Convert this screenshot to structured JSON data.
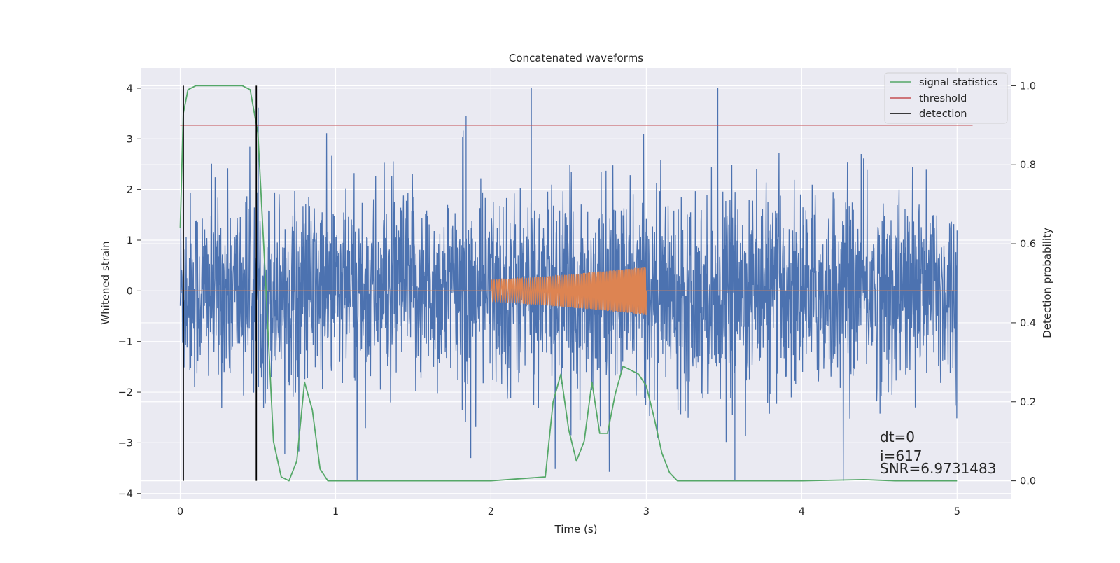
{
  "chart_data": {
    "type": "line",
    "title": "Concatenated waveforms",
    "xlabel": "Time (s)",
    "ylabel": "Whitened strain",
    "y2label": "Detection probability",
    "xlim": [
      -0.25,
      5.35
    ],
    "ylim": [
      -4.1,
      4.4
    ],
    "y2lim": [
      -0.045,
      1.045
    ],
    "xticks": [
      0,
      1,
      2,
      3,
      4,
      5
    ],
    "yticks": [
      -4,
      -3,
      -2,
      -1,
      0,
      1,
      2,
      3,
      4
    ],
    "y2ticks": [
      0.0,
      0.2,
      0.4,
      0.6,
      0.8,
      1.0
    ],
    "xtick_labels": [
      "0",
      "1",
      "2",
      "3",
      "4",
      "5"
    ],
    "ytick_labels": [
      "−4",
      "−3",
      "−2",
      "−1",
      "0",
      "1",
      "2",
      "3",
      "4"
    ],
    "y2tick_labels": [
      "0.0",
      "0.2",
      "0.4",
      "0.6",
      "0.8",
      "1.0"
    ],
    "grid": true,
    "legend_position": "top-right",
    "legend": [
      {
        "label": "signal statistics",
        "color": "#55a868"
      },
      {
        "label": "threshold",
        "color": "#c44e52"
      },
      {
        "label": "detection",
        "color": "#000000"
      }
    ],
    "series": [
      {
        "axis": "left",
        "color": "#4c72b0",
        "x_range": [
          0,
          5
        ],
        "typical_amplitude": [
          -1.0,
          0.9
        ],
        "max": 4.0,
        "min": -3.75
      },
      {
        "axis": "left",
        "color": "#dd8452",
        "x_range": [
          0,
          5
        ],
        "chirp_start": 2.0,
        "chirp_end": 3.0,
        "start_amplitude": 0.22,
        "end_amplitude": 0.48
      },
      {
        "name": "signal statistics",
        "axis": "right",
        "color": "#55a868",
        "x": [
          0.0,
          0.02,
          0.05,
          0.1,
          0.2,
          0.3,
          0.4,
          0.45,
          0.5,
          0.55,
          0.6,
          0.65,
          0.7,
          0.75,
          0.8,
          0.85,
          0.9,
          0.95,
          1.0,
          1.5,
          2.0,
          2.35,
          2.4,
          2.45,
          2.5,
          2.55,
          2.6,
          2.65,
          2.7,
          2.75,
          2.8,
          2.85,
          2.9,
          2.95,
          3.0,
          3.05,
          3.1,
          3.15,
          3.2,
          3.3,
          4.0,
          4.4,
          4.6,
          5.0
        ],
        "y": [
          0.64,
          0.93,
          0.99,
          1.0,
          1.0,
          1.0,
          1.0,
          0.99,
          0.88,
          0.5,
          0.1,
          0.01,
          0.0,
          0.05,
          0.25,
          0.18,
          0.03,
          0.0,
          0.0,
          0.0,
          0.0,
          0.01,
          0.2,
          0.27,
          0.13,
          0.05,
          0.1,
          0.25,
          0.12,
          0.12,
          0.22,
          0.29,
          0.28,
          0.27,
          0.24,
          0.16,
          0.07,
          0.02,
          0.0,
          0.0,
          0.0,
          0.003,
          0.0,
          0.0
        ]
      },
      {
        "name": "threshold",
        "axis": "right",
        "color": "#c44e52",
        "x": [
          0.0,
          5.1
        ],
        "y": [
          0.9,
          0.9
        ]
      },
      {
        "name": "detection",
        "axis": "right",
        "color": "#000000",
        "vlines": [
          0.02,
          0.49
        ],
        "y": [
          0.0,
          1.0
        ]
      }
    ],
    "annotations": [
      "dt=0",
      "i=617",
      "SNR=6.9731483"
    ]
  }
}
